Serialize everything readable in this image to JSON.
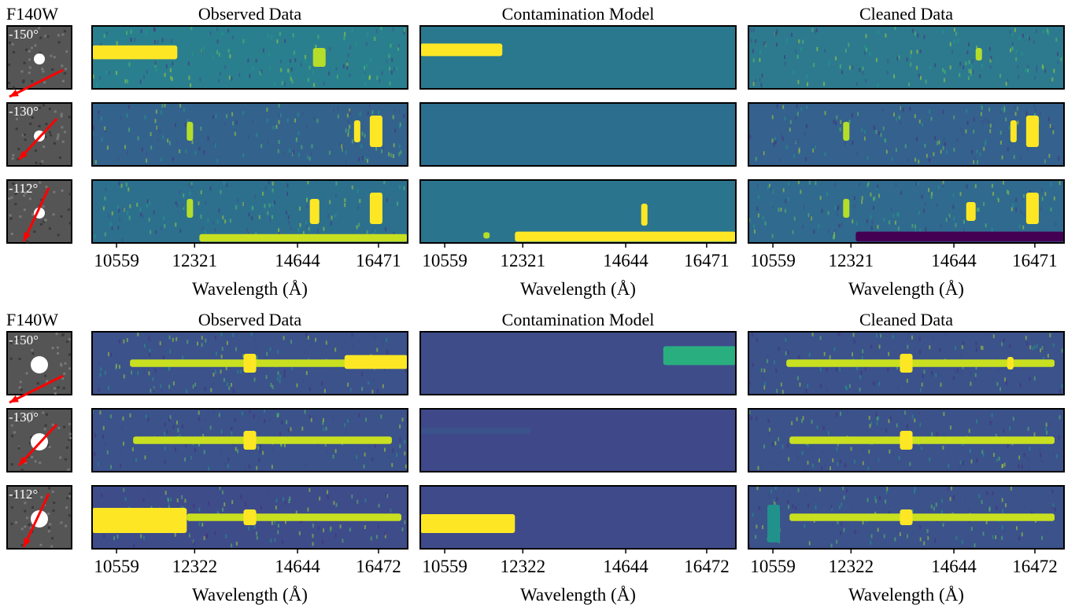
{
  "groups": [
    {
      "filter": "F140W",
      "columns": [
        "Observed Data",
        "Contamination Model",
        "Cleaned Data"
      ],
      "angles": [
        "-150°",
        "-130°",
        "-112°"
      ],
      "xlim": [
        10007,
        17130
      ],
      "xticks": [
        [
          10559,
          12321,
          14644,
          16471
        ],
        [
          10559,
          12321,
          14644,
          16471
        ],
        [
          10559,
          12321,
          14644,
          16471
        ]
      ],
      "xlabel": "Wavelength (Å)"
    },
    {
      "filter": "F140W",
      "columns": [
        "Observed Data",
        "Contamination Model",
        "Cleaned Data"
      ],
      "angles": [
        "-150°",
        "-130°",
        "-112°"
      ],
      "xlim": [
        10007,
        17130
      ],
      "xticks": [
        [
          10559,
          12322,
          14644,
          16472
        ],
        [
          10559,
          12322,
          14644,
          16472
        ],
        [
          10559,
          12322,
          14644,
          16472
        ]
      ],
      "xlabel": "Wavelength (Å)"
    }
  ]
}
